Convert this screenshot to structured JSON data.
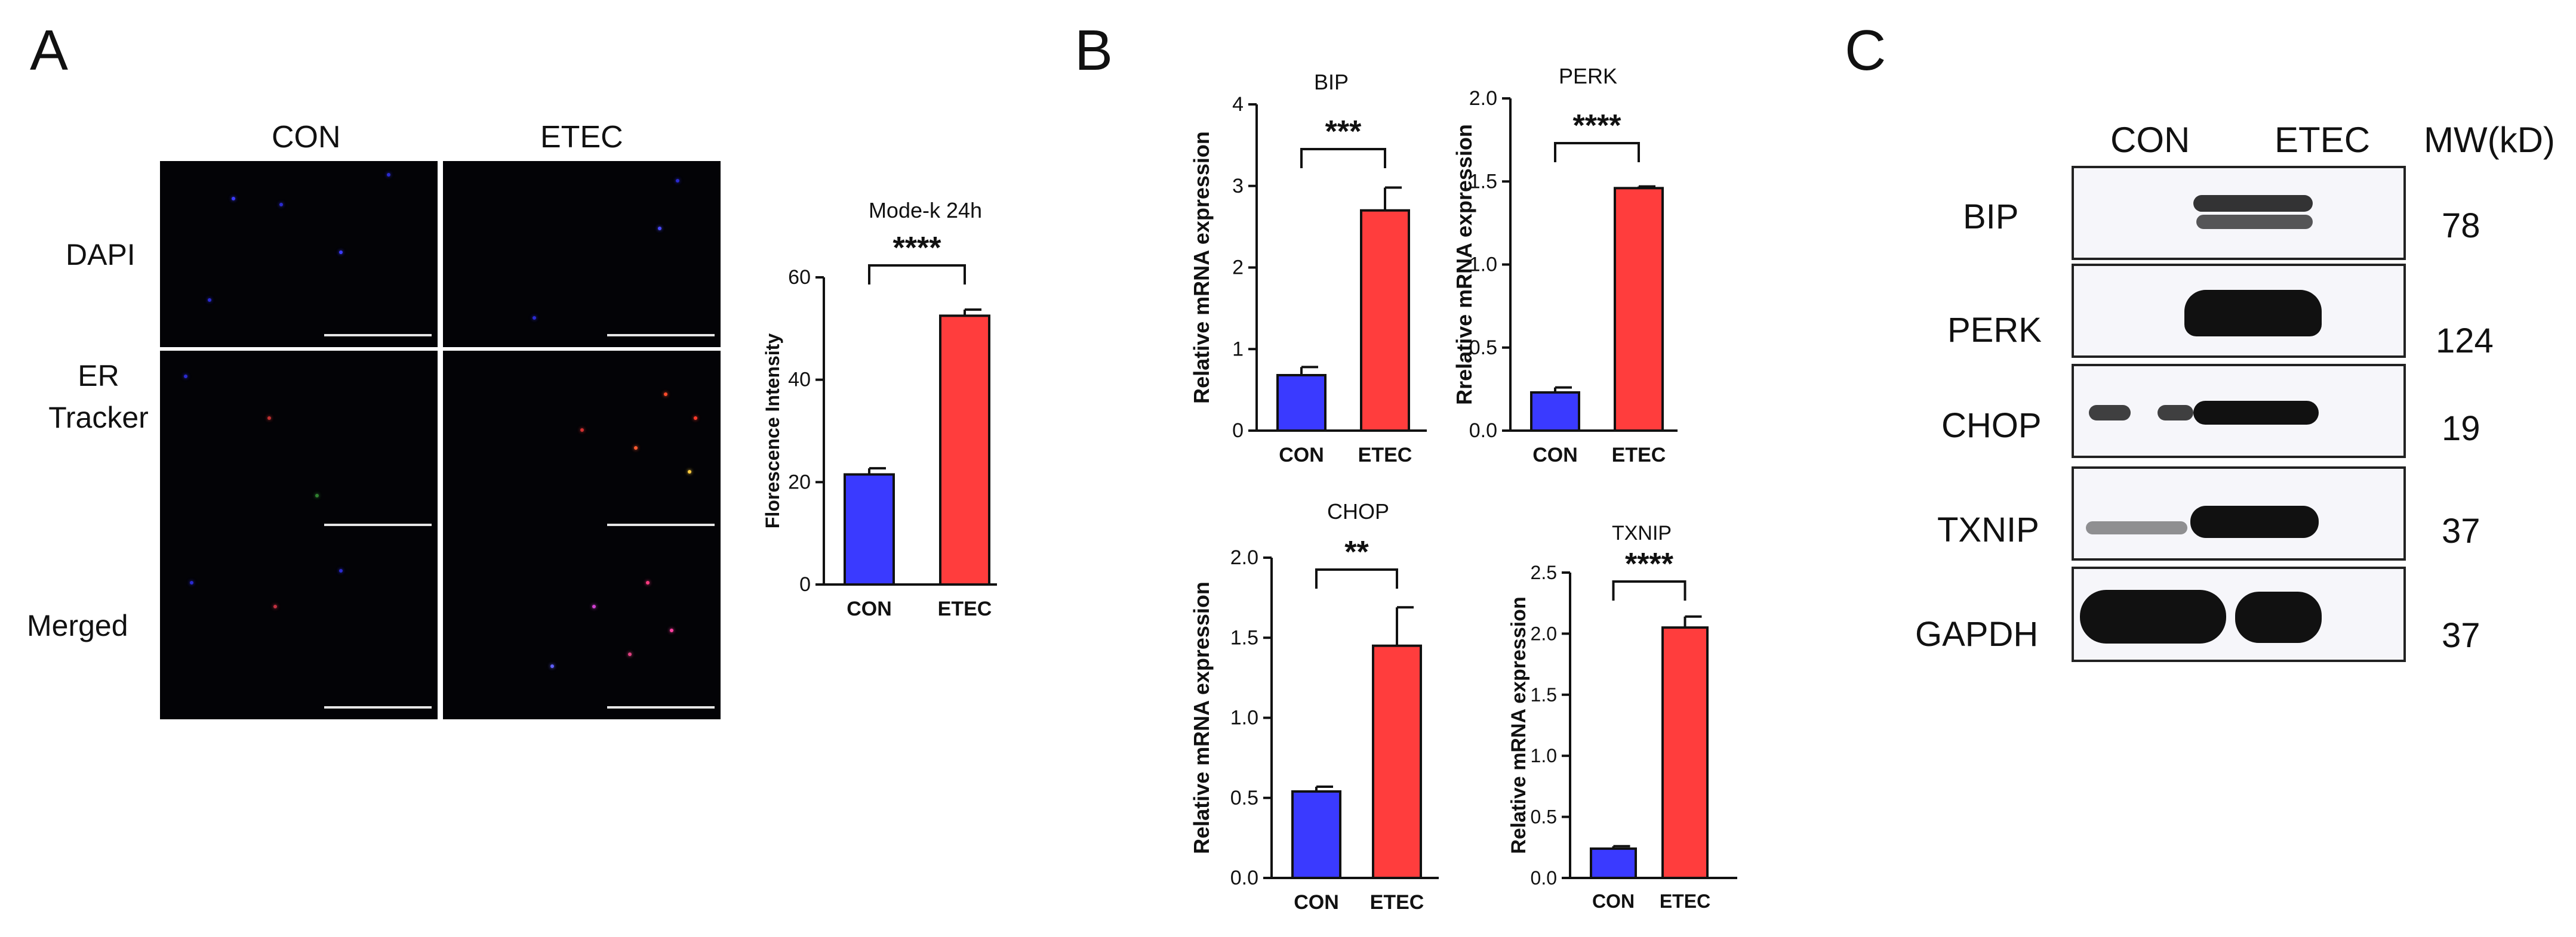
{
  "panel_labels": [
    "A",
    "B",
    "C"
  ],
  "panelA": {
    "column_headers": [
      "CON",
      "ETEC"
    ],
    "row_labels": [
      "DAPI",
      "ER\nTracker",
      "Merged"
    ]
  },
  "colors": {
    "con": "#3a3aff",
    "etec": "#ff3d3d",
    "axis": "#111111"
  },
  "chart_data": [
    {
      "type": "bar",
      "title": "Mode-k 24h",
      "ylabel": "Florescence Intensity",
      "categories": [
        "CON",
        "ETEC"
      ],
      "values": [
        21.5,
        52.5
      ],
      "errors": [
        1.2,
        1.2
      ],
      "ylim": [
        0,
        60
      ],
      "yticks": [
        "0",
        "20",
        "40",
        "60"
      ],
      "significance": "****"
    },
    {
      "type": "bar",
      "title": "BIP",
      "ylabel": "Relative mRNA expression",
      "categories": [
        "CON",
        "ETEC"
      ],
      "values": [
        0.68,
        2.7
      ],
      "errors": [
        0.1,
        0.28
      ],
      "ylim": [
        0,
        4
      ],
      "yticks": [
        "0",
        "1",
        "2",
        "3",
        "4"
      ],
      "significance": "***"
    },
    {
      "type": "bar",
      "title": "PERK",
      "ylabel": "Rrelative mRNA expression",
      "categories": [
        "CON",
        "ETEC"
      ],
      "values": [
        0.23,
        1.46
      ],
      "errors": [
        0.03,
        0.01
      ],
      "ylim": [
        0,
        2.0
      ],
      "yticks": [
        "0.0",
        "0.5",
        "1.0",
        "1.5",
        "2.0"
      ],
      "significance": "****"
    },
    {
      "type": "bar",
      "title": "CHOP",
      "ylabel": "Relative mRNA expression",
      "categories": [
        "CON",
        "ETEC"
      ],
      "values": [
        0.54,
        1.45
      ],
      "errors": [
        0.03,
        0.24
      ],
      "ylim": [
        0,
        2.0
      ],
      "yticks": [
        "0.0",
        "0.5",
        "1.0",
        "1.5",
        "2.0"
      ],
      "significance": "**"
    },
    {
      "type": "bar",
      "title": "TXNIP",
      "ylabel": "Relative mRNA expression",
      "categories": [
        "CON",
        "ETEC"
      ],
      "values": [
        0.24,
        2.05
      ],
      "errors": [
        0.02,
        0.09
      ],
      "ylim": [
        0,
        2.5
      ],
      "yticks": [
        "0.0",
        "0.5",
        "1.0",
        "1.5",
        "2.0",
        "2.5"
      ],
      "significance": "****"
    }
  ],
  "panelC": {
    "lane_headers": [
      "CON",
      "ETEC"
    ],
    "mw_header": "MW(kD)",
    "rows": [
      {
        "label": "BIP",
        "mw": "78"
      },
      {
        "label": "PERK",
        "mw": "124"
      },
      {
        "label": "CHOP",
        "mw": "19"
      },
      {
        "label": "TXNIP",
        "mw": "37"
      },
      {
        "label": "GAPDH",
        "mw": "37"
      }
    ]
  }
}
